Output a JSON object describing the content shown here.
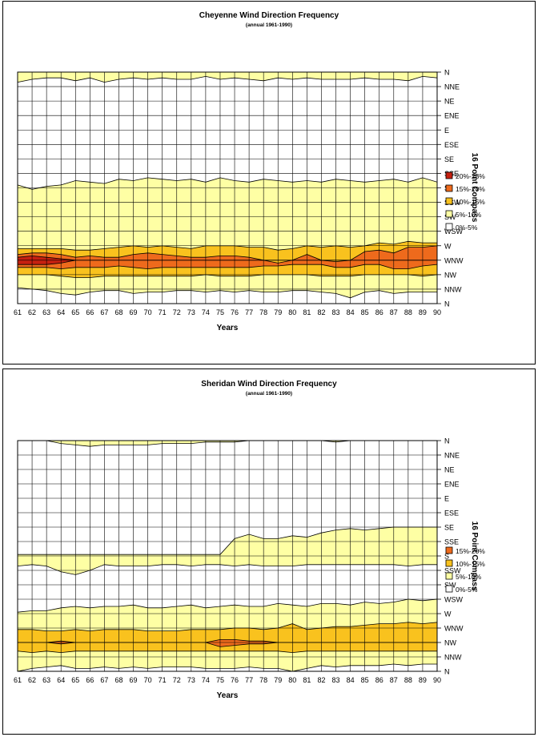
{
  "chart_data": [
    {
      "type": "contour",
      "title": "Cheyenne Wind Direction Frequency",
      "subtitle": "(annual 1961-1990)",
      "xlabel": "Years",
      "ylabel": "16 Point Compass",
      "x": [
        "61",
        "62",
        "63",
        "64",
        "65",
        "66",
        "67",
        "68",
        "69",
        "70",
        "71",
        "72",
        "73",
        "74",
        "75",
        "76",
        "77",
        "78",
        "79",
        "80",
        "81",
        "82",
        "83",
        "84",
        "85",
        "86",
        "87",
        "88",
        "89",
        "90"
      ],
      "y": [
        "N",
        "NNE",
        "NE",
        "ENE",
        "E",
        "ESE",
        "SE",
        "SSE",
        "S",
        "SSW",
        "SW",
        "WSW",
        "W",
        "WNW",
        "NW",
        "NNW",
        "N"
      ],
      "legend_position": "right",
      "grid": true,
      "bands": [
        {
          "label": "20%-25%",
          "color": "#c62010"
        },
        {
          "label": "15%-20%",
          "color": "#ee6a1c"
        },
        {
          "label": "10%-15%",
          "color": "#f9c21e"
        },
        {
          "label": "5%-10%",
          "color": "#feffa4"
        },
        {
          "label": "0%-5%",
          "color": "#ffffff"
        }
      ],
      "regions": [
        {
          "band": "5%-10%",
          "y_top": "N",
          "y_bottom": "NNE",
          "top_edge": [
            0.0,
            0.0,
            0.0,
            0.0,
            0.0,
            0.0,
            0.0,
            0.0,
            0.0,
            0.0,
            0.0,
            0.0,
            0.0,
            0.0,
            0.0,
            0.0,
            0.0,
            0.0,
            0.0,
            0.0,
            0.0,
            0.0,
            0.0,
            0.0,
            0.0,
            0.0,
            0.0,
            0.0,
            0.0,
            0.0
          ],
          "bottom_edge": [
            0.7,
            0.5,
            0.4,
            0.4,
            0.6,
            0.4,
            0.7,
            0.5,
            0.4,
            0.5,
            0.4,
            0.5,
            0.5,
            0.3,
            0.5,
            0.4,
            0.5,
            0.6,
            0.4,
            0.5,
            0.4,
            0.5,
            0.5,
            0.5,
            0.4,
            0.5,
            0.5,
            0.6,
            0.3,
            0.4
          ]
        },
        {
          "band": "5%-10%",
          "y_top": "SSE",
          "y_bottom": "NNW",
          "top_edge": [
            7.8,
            8.1,
            7.9,
            7.8,
            7.5,
            7.6,
            7.7,
            7.4,
            7.5,
            7.3,
            7.4,
            7.5,
            7.4,
            7.6,
            7.3,
            7.5,
            7.6,
            7.4,
            7.5,
            7.6,
            7.5,
            7.6,
            7.4,
            7.5,
            7.6,
            7.5,
            7.4,
            7.6,
            7.3,
            7.6
          ],
          "bottom_edge": [
            14.9,
            15.0,
            15.1,
            15.3,
            15.4,
            15.2,
            15.1,
            15.1,
            15.3,
            15.2,
            15.2,
            15.1,
            15.1,
            15.2,
            15.1,
            15.2,
            15.1,
            15.2,
            15.2,
            15.1,
            15.1,
            15.2,
            15.3,
            15.6,
            15.2,
            15.1,
            15.3,
            15.2,
            15.2,
            15.2
          ]
        },
        {
          "band": "10%-15%",
          "y_top": "W",
          "y_bottom": "NW",
          "top_edge": [
            12.2,
            12.2,
            12.2,
            12.2,
            12.3,
            12.3,
            12.2,
            12.1,
            12.0,
            12.1,
            12.0,
            12.1,
            12.2,
            12.0,
            12.0,
            12.0,
            12.1,
            12.1,
            12.3,
            12.2,
            12.0,
            12.1,
            12.0,
            12.1,
            12.0,
            11.8,
            11.9,
            11.7,
            11.8,
            11.8
          ],
          "bottom_edge": [
            14.0,
            14.0,
            14.0,
            14.1,
            14.2,
            14.2,
            14.1,
            14.1,
            14.1,
            14.1,
            14.1,
            14.1,
            14.1,
            14.0,
            14.1,
            14.1,
            14.1,
            14.0,
            14.0,
            14.0,
            14.0,
            14.1,
            14.1,
            14.1,
            14.0,
            14.0,
            14.0,
            14.0,
            14.1,
            14.0
          ]
        },
        {
          "band": "15%-20%",
          "y_top": "W",
          "y_bottom": "NW",
          "top_edge": [
            12.6,
            12.5,
            12.5,
            12.6,
            12.8,
            12.7,
            12.8,
            12.8,
            12.6,
            12.5,
            12.6,
            12.7,
            12.8,
            12.8,
            12.7,
            12.7,
            12.8,
            13.0,
            13.2,
            13.0,
            12.6,
            13.0,
            13.1,
            13.0,
            12.4,
            12.3,
            12.5,
            12.1,
            12.1,
            12.0
          ],
          "bottom_edge": [
            13.5,
            13.5,
            13.5,
            13.6,
            13.5,
            13.5,
            13.5,
            13.4,
            13.5,
            13.6,
            13.5,
            13.5,
            13.5,
            13.5,
            13.5,
            13.5,
            13.5,
            13.4,
            13.4,
            13.3,
            13.3,
            13.3,
            13.5,
            13.5,
            13.3,
            13.3,
            13.6,
            13.6,
            13.4,
            13.3
          ]
        },
        {
          "band": "20%-25%",
          "y_top": "W",
          "y_bottom": "WNW",
          "top_edge": [
            12.8,
            12.7,
            12.8,
            12.9,
            13.0,
            13.0,
            13.0,
            13.0,
            13.0,
            13.0,
            13.0,
            13.0,
            13.0,
            13.0,
            13.0,
            13.0,
            13.0,
            13.0,
            13.0,
            13.0,
            13.0,
            13.0,
            13.0,
            13.0,
            13.0,
            13.0,
            13.0,
            13.0,
            13.0,
            13.0
          ],
          "bottom_edge": [
            13.3,
            13.3,
            13.3,
            13.2,
            13.0,
            13.0,
            13.0,
            13.0,
            13.0,
            13.0,
            13.0,
            13.0,
            13.0,
            13.0,
            13.0,
            13.0,
            13.0,
            13.0,
            13.0,
            13.0,
            13.0,
            13.0,
            13.0,
            13.0,
            13.0,
            13.0,
            13.0,
            13.0,
            13.0,
            13.0
          ]
        }
      ]
    },
    {
      "type": "contour",
      "title": "Sheridan Wind Direction Frequency",
      "subtitle": "(annual 1961-1990)",
      "xlabel": "Years",
      "ylabel": "16 Point Compass",
      "x": [
        "61",
        "62",
        "63",
        "64",
        "65",
        "66",
        "67",
        "68",
        "69",
        "70",
        "71",
        "72",
        "73",
        "74",
        "75",
        "76",
        "77",
        "78",
        "79",
        "80",
        "81",
        "82",
        "83",
        "84",
        "85",
        "86",
        "87",
        "88",
        "89",
        "90"
      ],
      "y": [
        "N",
        "NNE",
        "NE",
        "ENE",
        "E",
        "ESE",
        "SE",
        "SSE",
        "S",
        "SSW",
        "SW",
        "WSW",
        "W",
        "WNW",
        "NW",
        "NNW",
        "N"
      ],
      "legend_position": "right",
      "grid": true,
      "bands": [
        {
          "label": "15%-20%",
          "color": "#ee6a1c"
        },
        {
          "label": "10%-15%",
          "color": "#f9c21e"
        },
        {
          "label": "5%-10%",
          "color": "#feffa4"
        },
        {
          "label": "0%-5%",
          "color": "#ffffff"
        }
      ],
      "regions": [
        {
          "band": "5%-10%",
          "y_top": "N",
          "y_bottom": "NNE",
          "top_edge": [
            0,
            0,
            0,
            0,
            0,
            0,
            0,
            0,
            0,
            0,
            0,
            0,
            0,
            0,
            0,
            0,
            0,
            0,
            0,
            0,
            0,
            0,
            0,
            0,
            0,
            0,
            0,
            0,
            0,
            0
          ],
          "bottom_edge": [
            0,
            0,
            0,
            0.2,
            0.3,
            0.4,
            0.3,
            0.3,
            0.3,
            0.3,
            0.2,
            0.2,
            0.2,
            0.1,
            0.1,
            0.1,
            0,
            0,
            0,
            0,
            0,
            0,
            0.1,
            0,
            0,
            0,
            0,
            0,
            0,
            0
          ]
        },
        {
          "band": "5%-10%",
          "y_top": "SE",
          "y_bottom": "SSW",
          "top_edge": [
            7.9,
            7.9,
            7.9,
            7.9,
            7.9,
            7.9,
            7.9,
            7.9,
            7.9,
            7.9,
            7.9,
            7.9,
            7.9,
            7.9,
            7.9,
            6.8,
            6.5,
            6.8,
            6.8,
            6.6,
            6.7,
            6.4,
            6.2,
            6.1,
            6.2,
            6.1,
            6.0,
            6.0,
            6.0,
            6.0
          ],
          "bottom_edge": [
            8.7,
            8.6,
            8.7,
            9.1,
            9.3,
            9.0,
            8.6,
            8.7,
            8.7,
            8.7,
            8.6,
            8.6,
            8.7,
            8.6,
            8.6,
            8.7,
            8.6,
            8.7,
            8.7,
            8.7,
            8.6,
            8.6,
            8.6,
            8.6,
            8.6,
            8.6,
            8.6,
            8.7,
            8.6,
            8.6
          ]
        },
        {
          "band": "5%-10%",
          "y_top": "WSW",
          "y_bottom": "NNW",
          "top_edge": [
            11.9,
            11.8,
            11.8,
            11.6,
            11.5,
            11.6,
            11.5,
            11.5,
            11.4,
            11.6,
            11.6,
            11.5,
            11.4,
            11.6,
            11.5,
            11.4,
            11.5,
            11.5,
            11.3,
            11.4,
            11.5,
            11.3,
            11.3,
            11.4,
            11.2,
            11.3,
            11.2,
            11.0,
            11.1,
            11.0
          ],
          "bottom_edge": [
            16.0,
            15.8,
            15.7,
            15.6,
            15.8,
            15.8,
            15.7,
            15.8,
            15.7,
            15.8,
            15.7,
            15.7,
            15.7,
            15.8,
            15.8,
            15.8,
            15.7,
            15.8,
            15.8,
            16.0,
            15.8,
            15.6,
            15.7,
            15.6,
            15.6,
            15.6,
            15.5,
            15.6,
            15.5,
            15.5
          ]
        },
        {
          "band": "10%-15%",
          "y_top": "W",
          "y_bottom": "NNW",
          "top_edge": [
            13.1,
            13.1,
            13.2,
            13.2,
            13.1,
            13.2,
            13.1,
            13.1,
            13.1,
            13.2,
            13.2,
            13.2,
            13.1,
            13.1,
            13.1,
            13.0,
            13.0,
            13.1,
            13.0,
            12.7,
            13.1,
            13.0,
            12.9,
            12.9,
            12.8,
            12.7,
            12.7,
            12.6,
            12.7,
            12.6
          ],
          "bottom_edge": [
            14.6,
            14.7,
            14.6,
            14.7,
            14.6,
            14.6,
            14.6,
            14.6,
            14.6,
            14.6,
            14.6,
            14.6,
            14.6,
            14.6,
            14.6,
            14.6,
            14.6,
            14.6,
            14.6,
            14.7,
            14.6,
            14.6,
            14.6,
            14.6,
            14.6,
            14.6,
            14.6,
            14.6,
            14.6,
            14.6
          ]
        },
        {
          "band": "15%-20%",
          "y_top": "WNW",
          "y_bottom": "NW",
          "top_edge": [
            14.0,
            14.0,
            14.0,
            13.9,
            14.0,
            14.0,
            14.0,
            14.0,
            14.0,
            14.0,
            14.0,
            14.0,
            14.0,
            14.0,
            13.8,
            13.8,
            13.9,
            13.9,
            14.0,
            14.0,
            14.0,
            14.0,
            14.0,
            14.0,
            14.0,
            14.0,
            14.0,
            14.0,
            14.0,
            14.0
          ],
          "bottom_edge": [
            14.0,
            14.0,
            14.0,
            14.1,
            14.0,
            14.0,
            14.0,
            14.0,
            14.0,
            14.0,
            14.0,
            14.0,
            14.0,
            14.0,
            14.3,
            14.2,
            14.1,
            14.1,
            14.0,
            14.0,
            14.0,
            14.0,
            14.0,
            14.0,
            14.0,
            14.0,
            14.0,
            14.0,
            14.0,
            14.0
          ]
        }
      ]
    }
  ]
}
